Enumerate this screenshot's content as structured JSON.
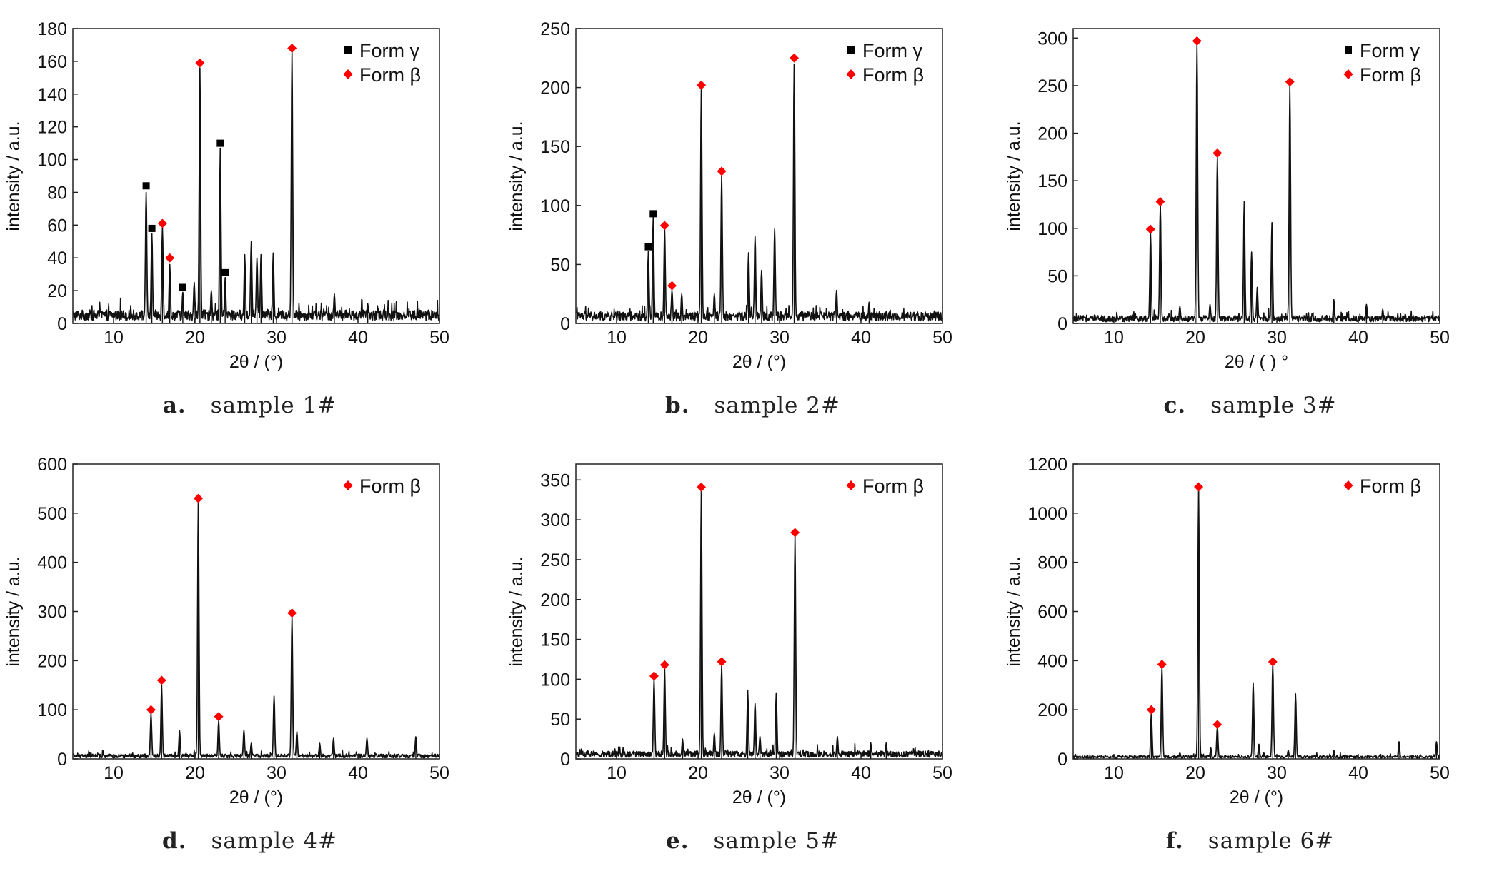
{
  "chart_data": [
    {
      "type": "line",
      "label": "a.",
      "title": "sample 1#",
      "xlabel": "2θ / (°)",
      "ylabel": "intensity / a.u.",
      "xlim": [
        5,
        50
      ],
      "ylim": [
        0,
        180
      ],
      "xticks": [
        10,
        20,
        30,
        40,
        50
      ],
      "yticks": [
        0,
        20,
        40,
        60,
        80,
        100,
        120,
        140,
        160,
        180
      ],
      "legend": [
        {
          "name": "Form γ",
          "marker": "square",
          "color": "#000000"
        },
        {
          "name": "Form β",
          "marker": "diamond",
          "color": "#ff0000"
        }
      ],
      "legend_position": "top-right",
      "baseline": 5,
      "peaks": [
        {
          "x": 14.0,
          "y": 80
        },
        {
          "x": 14.7,
          "y": 55
        },
        {
          "x": 16.0,
          "y": 58
        },
        {
          "x": 16.9,
          "y": 36
        },
        {
          "x": 18.5,
          "y": 19
        },
        {
          "x": 19.9,
          "y": 25
        },
        {
          "x": 20.6,
          "y": 156
        },
        {
          "x": 22.0,
          "y": 20
        },
        {
          "x": 23.1,
          "y": 107
        },
        {
          "x": 23.7,
          "y": 28
        },
        {
          "x": 26.1,
          "y": 42
        },
        {
          "x": 26.9,
          "y": 50
        },
        {
          "x": 27.6,
          "y": 40
        },
        {
          "x": 28.1,
          "y": 42
        },
        {
          "x": 29.6,
          "y": 43
        },
        {
          "x": 31.9,
          "y": 166
        },
        {
          "x": 37.1,
          "y": 18
        },
        {
          "x": 41.2,
          "y": 12
        }
      ],
      "series": [
        {
          "name": "Form γ",
          "marker": "square",
          "points": [
            {
              "x": 14.0,
              "y": 84
            },
            {
              "x": 14.7,
              "y": 58
            },
            {
              "x": 18.5,
              "y": 22
            },
            {
              "x": 23.1,
              "y": 110
            },
            {
              "x": 23.7,
              "y": 31
            }
          ]
        },
        {
          "name": "Form β",
          "marker": "diamond",
          "points": [
            {
              "x": 16.0,
              "y": 61
            },
            {
              "x": 16.9,
              "y": 40
            },
            {
              "x": 20.6,
              "y": 159
            },
            {
              "x": 31.9,
              "y": 168
            }
          ]
        }
      ]
    },
    {
      "type": "line",
      "label": "b.",
      "title": "sample 2#",
      "xlabel": "2θ / (°)",
      "ylabel": "intensity / a.u.",
      "xlim": [
        5,
        50
      ],
      "ylim": [
        0,
        250
      ],
      "xticks": [
        10,
        20,
        30,
        40,
        50
      ],
      "yticks": [
        0,
        50,
        100,
        150,
        200,
        250
      ],
      "legend": [
        {
          "name": "Form γ",
          "marker": "square",
          "color": "#000000"
        },
        {
          "name": "Form β",
          "marker": "diamond",
          "color": "#ff0000"
        }
      ],
      "legend_position": "top-right",
      "baseline": 6,
      "peaks": [
        {
          "x": 13.9,
          "y": 61
        },
        {
          "x": 14.5,
          "y": 90
        },
        {
          "x": 15.9,
          "y": 80
        },
        {
          "x": 16.8,
          "y": 28
        },
        {
          "x": 18.0,
          "y": 25
        },
        {
          "x": 20.4,
          "y": 199
        },
        {
          "x": 22.0,
          "y": 25
        },
        {
          "x": 22.9,
          "y": 125
        },
        {
          "x": 26.2,
          "y": 60
        },
        {
          "x": 27.0,
          "y": 74
        },
        {
          "x": 27.8,
          "y": 45
        },
        {
          "x": 29.4,
          "y": 80
        },
        {
          "x": 31.8,
          "y": 220
        },
        {
          "x": 37.0,
          "y": 28
        },
        {
          "x": 41.0,
          "y": 18
        }
      ],
      "series": [
        {
          "name": "Form γ",
          "marker": "square",
          "points": [
            {
              "x": 13.9,
              "y": 65
            },
            {
              "x": 14.5,
              "y": 93
            }
          ]
        },
        {
          "name": "Form β",
          "marker": "diamond",
          "points": [
            {
              "x": 15.9,
              "y": 83
            },
            {
              "x": 16.8,
              "y": 32
            },
            {
              "x": 20.4,
              "y": 202
            },
            {
              "x": 22.9,
              "y": 129
            },
            {
              "x": 31.8,
              "y": 225
            }
          ]
        }
      ]
    },
    {
      "type": "line",
      "label": "c.",
      "title": "sample 3#",
      "xlabel": "2θ / ( )  °",
      "ylabel": "intensity / a.u.",
      "xlim": [
        5,
        50
      ],
      "ylim": [
        0,
        310
      ],
      "xticks": [
        10,
        20,
        30,
        40,
        50
      ],
      "yticks": [
        0,
        50,
        100,
        150,
        200,
        250,
        300
      ],
      "legend": [
        {
          "name": "Form γ",
          "marker": "square",
          "color": "#000000"
        },
        {
          "name": "Form β",
          "marker": "diamond",
          "color": "#ff0000"
        }
      ],
      "legend_position": "top-right",
      "baseline": 5,
      "peaks": [
        {
          "x": 14.5,
          "y": 95
        },
        {
          "x": 15.7,
          "y": 125
        },
        {
          "x": 18.1,
          "y": 18
        },
        {
          "x": 20.2,
          "y": 293
        },
        {
          "x": 21.8,
          "y": 20
        },
        {
          "x": 22.7,
          "y": 175
        },
        {
          "x": 26.0,
          "y": 128
        },
        {
          "x": 26.9,
          "y": 75
        },
        {
          "x": 27.6,
          "y": 38
        },
        {
          "x": 29.4,
          "y": 106
        },
        {
          "x": 31.6,
          "y": 250
        },
        {
          "x": 37.0,
          "y": 25
        },
        {
          "x": 41.0,
          "y": 20
        },
        {
          "x": 43.0,
          "y": 15
        }
      ],
      "series": [
        {
          "name": "Form β",
          "marker": "diamond",
          "points": [
            {
              "x": 14.5,
              "y": 99
            },
            {
              "x": 15.7,
              "y": 128
            },
            {
              "x": 20.2,
              "y": 297
            },
            {
              "x": 22.7,
              "y": 179
            },
            {
              "x": 31.6,
              "y": 254
            }
          ]
        }
      ]
    },
    {
      "type": "line",
      "label": "d.",
      "title": "sample 4#",
      "xlabel": "2θ / (°)",
      "ylabel": "intensity / a.u.",
      "xlim": [
        5,
        50
      ],
      "ylim": [
        0,
        600
      ],
      "xticks": [
        10,
        20,
        30,
        40,
        50
      ],
      "yticks": [
        0,
        100,
        200,
        300,
        400,
        500,
        600
      ],
      "legend": [
        {
          "name": "Form β",
          "marker": "diamond",
          "color": "#ff0000"
        }
      ],
      "legend_position": "top-right",
      "baseline": 6,
      "peaks": [
        {
          "x": 14.6,
          "y": 92
        },
        {
          "x": 15.9,
          "y": 150
        },
        {
          "x": 18.1,
          "y": 58
        },
        {
          "x": 20.4,
          "y": 525
        },
        {
          "x": 22.9,
          "y": 78
        },
        {
          "x": 26.0,
          "y": 58
        },
        {
          "x": 26.9,
          "y": 32
        },
        {
          "x": 29.7,
          "y": 128
        },
        {
          "x": 31.9,
          "y": 290
        },
        {
          "x": 32.5,
          "y": 55
        },
        {
          "x": 35.3,
          "y": 32
        },
        {
          "x": 37.0,
          "y": 42
        },
        {
          "x": 41.1,
          "y": 42
        },
        {
          "x": 47.1,
          "y": 45
        }
      ],
      "series": [
        {
          "name": "Form β",
          "marker": "diamond",
          "points": [
            {
              "x": 14.6,
              "y": 100
            },
            {
              "x": 15.9,
              "y": 160
            },
            {
              "x": 20.4,
              "y": 530
            },
            {
              "x": 22.9,
              "y": 86
            },
            {
              "x": 31.9,
              "y": 297
            }
          ]
        }
      ]
    },
    {
      "type": "line",
      "label": "e.",
      "title": "sample 5#",
      "xlabel": "2θ / (°)",
      "ylabel": "intensity / a.u.",
      "xlim": [
        5,
        50
      ],
      "ylim": [
        0,
        370
      ],
      "xticks": [
        10,
        20,
        30,
        40,
        50
      ],
      "yticks": [
        0,
        50,
        100,
        150,
        200,
        250,
        300,
        350
      ],
      "legend": [
        {
          "name": "Form β",
          "marker": "diamond",
          "color": "#ff0000"
        }
      ],
      "legend_position": "top-right",
      "baseline": 6,
      "peaks": [
        {
          "x": 14.6,
          "y": 100
        },
        {
          "x": 15.9,
          "y": 113
        },
        {
          "x": 18.1,
          "y": 25
        },
        {
          "x": 20.4,
          "y": 336
        },
        {
          "x": 22.0,
          "y": 32
        },
        {
          "x": 22.9,
          "y": 117
        },
        {
          "x": 26.1,
          "y": 86
        },
        {
          "x": 27.0,
          "y": 70
        },
        {
          "x": 27.6,
          "y": 28
        },
        {
          "x": 29.6,
          "y": 83
        },
        {
          "x": 31.9,
          "y": 280
        },
        {
          "x": 37.1,
          "y": 28
        },
        {
          "x": 41.2,
          "y": 20
        },
        {
          "x": 43.1,
          "y": 20
        }
      ],
      "series": [
        {
          "name": "Form β",
          "marker": "diamond",
          "points": [
            {
              "x": 14.6,
              "y": 104
            },
            {
              "x": 15.9,
              "y": 118
            },
            {
              "x": 20.4,
              "y": 341
            },
            {
              "x": 22.9,
              "y": 122
            },
            {
              "x": 31.9,
              "y": 284
            }
          ]
        }
      ]
    },
    {
      "type": "line",
      "label": "f.",
      "title": "sample 6#",
      "xlabel": "2θ / (°)",
      "ylabel": "intensity / a.u.",
      "xlim": [
        5,
        50
      ],
      "ylim": [
        0,
        1200
      ],
      "xticks": [
        10,
        20,
        30,
        40,
        50
      ],
      "yticks": [
        0,
        200,
        400,
        600,
        800,
        1000,
        1200
      ],
      "legend": [
        {
          "name": "Form β",
          "marker": "diamond",
          "color": "#ff0000"
        }
      ],
      "legend_position": "top-right",
      "baseline": 8,
      "peaks": [
        {
          "x": 14.6,
          "y": 190
        },
        {
          "x": 15.9,
          "y": 375
        },
        {
          "x": 18.1,
          "y": 25
        },
        {
          "x": 20.4,
          "y": 1095
        },
        {
          "x": 21.9,
          "y": 45
        },
        {
          "x": 22.7,
          "y": 130
        },
        {
          "x": 27.1,
          "y": 310
        },
        {
          "x": 27.8,
          "y": 60
        },
        {
          "x": 29.5,
          "y": 385
        },
        {
          "x": 31.4,
          "y": 35
        },
        {
          "x": 32.3,
          "y": 265
        },
        {
          "x": 37.0,
          "y": 35
        },
        {
          "x": 45.0,
          "y": 70
        },
        {
          "x": 49.6,
          "y": 70
        }
      ],
      "series": [
        {
          "name": "Form β",
          "marker": "diamond",
          "points": [
            {
              "x": 14.6,
              "y": 200
            },
            {
              "x": 15.9,
              "y": 385
            },
            {
              "x": 20.4,
              "y": 1107
            },
            {
              "x": 22.7,
              "y": 140
            },
            {
              "x": 29.5,
              "y": 395
            }
          ]
        }
      ]
    }
  ]
}
